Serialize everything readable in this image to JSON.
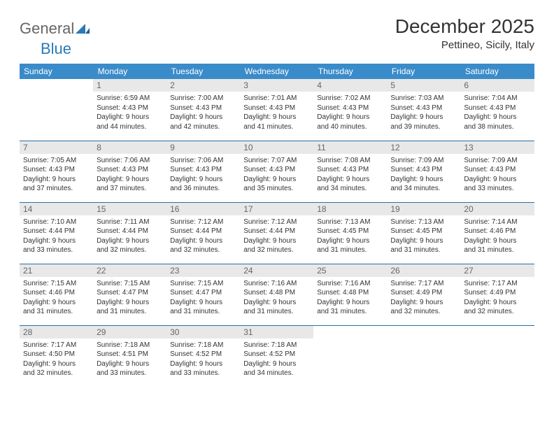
{
  "logo": {
    "text1": "General",
    "text2": "Blue"
  },
  "title": "December 2025",
  "location": "Pettineo, Sicily, Italy",
  "colors": {
    "header_bg": "#3a8bc9",
    "header_text": "#ffffff",
    "daynum_bg": "#e8e8e8",
    "daynum_text": "#666666",
    "body_text": "#333333",
    "divider": "#2a6fa5",
    "logo_blue": "#2a7ab8"
  },
  "day_headers": [
    "Sunday",
    "Monday",
    "Tuesday",
    "Wednesday",
    "Thursday",
    "Friday",
    "Saturday"
  ],
  "weeks": [
    [
      {
        "num": "",
        "lines": []
      },
      {
        "num": "1",
        "lines": [
          "Sunrise: 6:59 AM",
          "Sunset: 4:43 PM",
          "Daylight: 9 hours",
          "and 44 minutes."
        ]
      },
      {
        "num": "2",
        "lines": [
          "Sunrise: 7:00 AM",
          "Sunset: 4:43 PM",
          "Daylight: 9 hours",
          "and 42 minutes."
        ]
      },
      {
        "num": "3",
        "lines": [
          "Sunrise: 7:01 AM",
          "Sunset: 4:43 PM",
          "Daylight: 9 hours",
          "and 41 minutes."
        ]
      },
      {
        "num": "4",
        "lines": [
          "Sunrise: 7:02 AM",
          "Sunset: 4:43 PM",
          "Daylight: 9 hours",
          "and 40 minutes."
        ]
      },
      {
        "num": "5",
        "lines": [
          "Sunrise: 7:03 AM",
          "Sunset: 4:43 PM",
          "Daylight: 9 hours",
          "and 39 minutes."
        ]
      },
      {
        "num": "6",
        "lines": [
          "Sunrise: 7:04 AM",
          "Sunset: 4:43 PM",
          "Daylight: 9 hours",
          "and 38 minutes."
        ]
      }
    ],
    [
      {
        "num": "7",
        "lines": [
          "Sunrise: 7:05 AM",
          "Sunset: 4:43 PM",
          "Daylight: 9 hours",
          "and 37 minutes."
        ]
      },
      {
        "num": "8",
        "lines": [
          "Sunrise: 7:06 AM",
          "Sunset: 4:43 PM",
          "Daylight: 9 hours",
          "and 37 minutes."
        ]
      },
      {
        "num": "9",
        "lines": [
          "Sunrise: 7:06 AM",
          "Sunset: 4:43 PM",
          "Daylight: 9 hours",
          "and 36 minutes."
        ]
      },
      {
        "num": "10",
        "lines": [
          "Sunrise: 7:07 AM",
          "Sunset: 4:43 PM",
          "Daylight: 9 hours",
          "and 35 minutes."
        ]
      },
      {
        "num": "11",
        "lines": [
          "Sunrise: 7:08 AM",
          "Sunset: 4:43 PM",
          "Daylight: 9 hours",
          "and 34 minutes."
        ]
      },
      {
        "num": "12",
        "lines": [
          "Sunrise: 7:09 AM",
          "Sunset: 4:43 PM",
          "Daylight: 9 hours",
          "and 34 minutes."
        ]
      },
      {
        "num": "13",
        "lines": [
          "Sunrise: 7:09 AM",
          "Sunset: 4:43 PM",
          "Daylight: 9 hours",
          "and 33 minutes."
        ]
      }
    ],
    [
      {
        "num": "14",
        "lines": [
          "Sunrise: 7:10 AM",
          "Sunset: 4:44 PM",
          "Daylight: 9 hours",
          "and 33 minutes."
        ]
      },
      {
        "num": "15",
        "lines": [
          "Sunrise: 7:11 AM",
          "Sunset: 4:44 PM",
          "Daylight: 9 hours",
          "and 32 minutes."
        ]
      },
      {
        "num": "16",
        "lines": [
          "Sunrise: 7:12 AM",
          "Sunset: 4:44 PM",
          "Daylight: 9 hours",
          "and 32 minutes."
        ]
      },
      {
        "num": "17",
        "lines": [
          "Sunrise: 7:12 AM",
          "Sunset: 4:44 PM",
          "Daylight: 9 hours",
          "and 32 minutes."
        ]
      },
      {
        "num": "18",
        "lines": [
          "Sunrise: 7:13 AM",
          "Sunset: 4:45 PM",
          "Daylight: 9 hours",
          "and 31 minutes."
        ]
      },
      {
        "num": "19",
        "lines": [
          "Sunrise: 7:13 AM",
          "Sunset: 4:45 PM",
          "Daylight: 9 hours",
          "and 31 minutes."
        ]
      },
      {
        "num": "20",
        "lines": [
          "Sunrise: 7:14 AM",
          "Sunset: 4:46 PM",
          "Daylight: 9 hours",
          "and 31 minutes."
        ]
      }
    ],
    [
      {
        "num": "21",
        "lines": [
          "Sunrise: 7:15 AM",
          "Sunset: 4:46 PM",
          "Daylight: 9 hours",
          "and 31 minutes."
        ]
      },
      {
        "num": "22",
        "lines": [
          "Sunrise: 7:15 AM",
          "Sunset: 4:47 PM",
          "Daylight: 9 hours",
          "and 31 minutes."
        ]
      },
      {
        "num": "23",
        "lines": [
          "Sunrise: 7:15 AM",
          "Sunset: 4:47 PM",
          "Daylight: 9 hours",
          "and 31 minutes."
        ]
      },
      {
        "num": "24",
        "lines": [
          "Sunrise: 7:16 AM",
          "Sunset: 4:48 PM",
          "Daylight: 9 hours",
          "and 31 minutes."
        ]
      },
      {
        "num": "25",
        "lines": [
          "Sunrise: 7:16 AM",
          "Sunset: 4:48 PM",
          "Daylight: 9 hours",
          "and 31 minutes."
        ]
      },
      {
        "num": "26",
        "lines": [
          "Sunrise: 7:17 AM",
          "Sunset: 4:49 PM",
          "Daylight: 9 hours",
          "and 32 minutes."
        ]
      },
      {
        "num": "27",
        "lines": [
          "Sunrise: 7:17 AM",
          "Sunset: 4:49 PM",
          "Daylight: 9 hours",
          "and 32 minutes."
        ]
      }
    ],
    [
      {
        "num": "28",
        "lines": [
          "Sunrise: 7:17 AM",
          "Sunset: 4:50 PM",
          "Daylight: 9 hours",
          "and 32 minutes."
        ]
      },
      {
        "num": "29",
        "lines": [
          "Sunrise: 7:18 AM",
          "Sunset: 4:51 PM",
          "Daylight: 9 hours",
          "and 33 minutes."
        ]
      },
      {
        "num": "30",
        "lines": [
          "Sunrise: 7:18 AM",
          "Sunset: 4:52 PM",
          "Daylight: 9 hours",
          "and 33 minutes."
        ]
      },
      {
        "num": "31",
        "lines": [
          "Sunrise: 7:18 AM",
          "Sunset: 4:52 PM",
          "Daylight: 9 hours",
          "and 34 minutes."
        ]
      },
      {
        "num": "",
        "lines": []
      },
      {
        "num": "",
        "lines": []
      },
      {
        "num": "",
        "lines": []
      }
    ]
  ]
}
